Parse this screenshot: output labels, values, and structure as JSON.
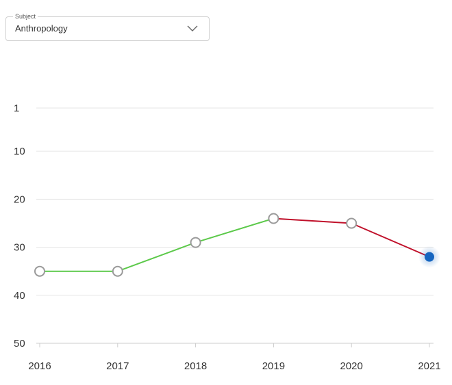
{
  "subject_select": {
    "legend": "Subject",
    "value": "Anthropology"
  },
  "chart_data": {
    "type": "line",
    "x": [
      "2016",
      "2017",
      "2018",
      "2019",
      "2020",
      "2021"
    ],
    "values": [
      35,
      35,
      29,
      24,
      25,
      32
    ],
    "ylim": [
      50,
      1
    ],
    "y_inverted": true,
    "yticks": [
      1,
      10,
      20,
      30,
      40,
      50
    ],
    "grid": true,
    "colors": {
      "rising": "#5cc94a",
      "falling": "#c0102a",
      "marker_border": "#9a9a9a",
      "current_marker": "#1565c0",
      "gridline": "#e6e6e6",
      "axis": "#cccccc"
    }
  }
}
